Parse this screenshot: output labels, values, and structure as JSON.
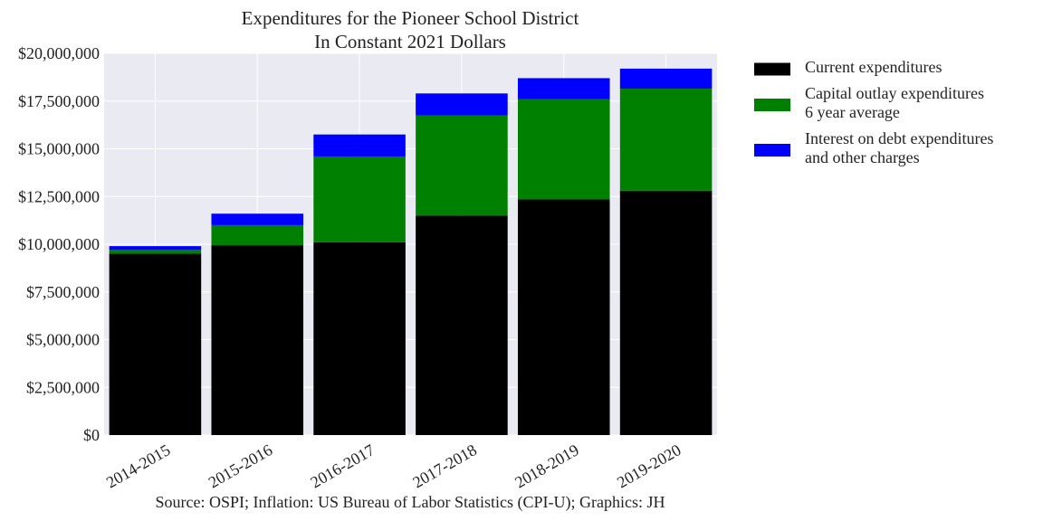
{
  "chart_data": {
    "type": "bar",
    "stacked": true,
    "title": [
      "Expenditures for the Pioneer School District",
      "In Constant 2021 Dollars"
    ],
    "xlabel": "",
    "ylabel": "",
    "ylim": [
      0,
      20000000
    ],
    "yticks": [
      0,
      2500000,
      5000000,
      7500000,
      10000000,
      12500000,
      15000000,
      17500000,
      20000000
    ],
    "ytick_labels": [
      "$0",
      "$2,500,000",
      "$5,000,000",
      "$7,500,000",
      "$10,000,000",
      "$12,500,000",
      "$15,000,000",
      "$17,500,000",
      "$20,000,000"
    ],
    "categories": [
      "2014-2015",
      "2015-2016",
      "2016-2017",
      "2017-2018",
      "2018-2019",
      "2019-2020"
    ],
    "xtick_rotation_deg": 30,
    "grid": true,
    "legend_position": "outside-right-top",
    "series": [
      {
        "name": "Current expenditures",
        "name_lines": [
          "Current expenditures"
        ],
        "color": "#000000",
        "values": [
          9500000,
          9950000,
          10100000,
          11500000,
          12350000,
          12800000
        ]
      },
      {
        "name": "Capital outlay expenditures 6 year average",
        "name_lines": [
          "Capital outlay expenditures",
          "6 year average"
        ],
        "color": "#008000",
        "values": [
          200000,
          1050000,
          4500000,
          5250000,
          5250000,
          5350000
        ]
      },
      {
        "name": "Interest on debt expenditures and other charges",
        "name_lines": [
          "Interest on debt expenditures",
          "and other charges"
        ],
        "color": "#0000ff",
        "values": [
          200000,
          600000,
          1150000,
          1150000,
          1100000,
          1050000
        ]
      }
    ],
    "source_note": "Source: OSPI; Inflation: US Bureau of Labor Statistics (CPI-U); Graphics: JH"
  },
  "colors": {
    "plot_background": "#eaeaf2",
    "grid": "#ffffff"
  }
}
